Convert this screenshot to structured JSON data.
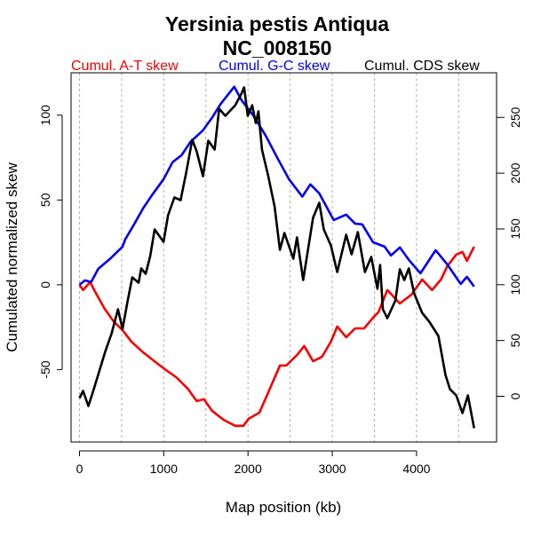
{
  "chart_data": {
    "type": "line",
    "title": "Yersinia pestis Antiqua",
    "subtitle": "NC_008150",
    "xlabel": "Map position (kb)",
    "ylabel": "Cumulated normalized skew",
    "xlim": [
      -100,
      4950
    ],
    "ylim": [
      -92.7,
      125
    ],
    "ylim_right": [
      -41,
      290
    ],
    "x_ticks": [
      "0",
      "1000",
      "2000",
      "3000",
      "4000"
    ],
    "y_ticks": [
      "-50",
      "0",
      "50",
      "100"
    ],
    "y_right_ticks": [
      "0",
      "50",
      "100",
      "150",
      "200",
      "250"
    ],
    "grid": "vertical dashed every 500 kb",
    "legend_placement": "top",
    "series": [
      {
        "name": "Cumul. A-T skew",
        "color": "#ff0000",
        "axis": "left",
        "points": [
          [
            0,
            0
          ],
          [
            42,
            -3.1
          ],
          [
            127,
            1.6
          ],
          [
            191,
            -4.7
          ],
          [
            297,
            -14.1
          ],
          [
            403,
            -21.5
          ],
          [
            510,
            -26.7
          ],
          [
            616,
            -33.5
          ],
          [
            754,
            -39.8
          ],
          [
            860,
            -44
          ],
          [
            998,
            -49.2
          ],
          [
            1147,
            -54.5
          ],
          [
            1285,
            -61.3
          ],
          [
            1391,
            -68.6
          ],
          [
            1476,
            -67.5
          ],
          [
            1572,
            -74.3
          ],
          [
            1710,
            -79.6
          ],
          [
            1848,
            -83.2
          ],
          [
            1943,
            -83.2
          ],
          [
            2007,
            -79
          ],
          [
            2135,
            -75.4
          ],
          [
            2241,
            -63.4
          ],
          [
            2379,
            -47.6
          ],
          [
            2453,
            -47.6
          ],
          [
            2581,
            -41.4
          ],
          [
            2666,
            -36.1
          ],
          [
            2772,
            -45
          ],
          [
            2878,
            -42.4
          ],
          [
            2984,
            -33.5
          ],
          [
            3059,
            -24.6
          ],
          [
            3165,
            -30.9
          ],
          [
            3271,
            -25.7
          ],
          [
            3377,
            -25.7
          ],
          [
            3483,
            -19.4
          ],
          [
            3547,
            -16.2
          ],
          [
            3653,
            -3.1
          ],
          [
            3802,
            -11
          ],
          [
            3940,
            -5.8
          ],
          [
            4067,
            3.1
          ],
          [
            4184,
            -3.1
          ],
          [
            4290,
            3.1
          ],
          [
            4365,
            11
          ],
          [
            4471,
            17.8
          ],
          [
            4545,
            19.4
          ],
          [
            4598,
            14.1
          ],
          [
            4683,
            22.5
          ]
        ]
      },
      {
        "name": "Cumul. G-C skew",
        "color": "#0000ff",
        "axis": "left",
        "points": [
          [
            0,
            0
          ],
          [
            64,
            2.6
          ],
          [
            138,
            1.6
          ],
          [
            223,
            9.4
          ],
          [
            361,
            15.2
          ],
          [
            510,
            22.5
          ],
          [
            542,
            26.7
          ],
          [
            648,
            35.6
          ],
          [
            754,
            45
          ],
          [
            860,
            52.9
          ],
          [
            999,
            62.3
          ],
          [
            1105,
            72.3
          ],
          [
            1211,
            76.4
          ],
          [
            1317,
            84.3
          ],
          [
            1466,
            91.1
          ],
          [
            1572,
            98.4
          ],
          [
            1678,
            106.8
          ],
          [
            1837,
            116.8
          ],
          [
            1922,
            108.9
          ],
          [
            2060,
            100
          ],
          [
            2209,
            88
          ],
          [
            2347,
            74.9
          ],
          [
            2485,
            62.3
          ],
          [
            2644,
            52
          ],
          [
            2740,
            59.2
          ],
          [
            2846,
            53.9
          ],
          [
            3016,
            38.2
          ],
          [
            3165,
            41.4
          ],
          [
            3271,
            36.1
          ],
          [
            3356,
            35.6
          ],
          [
            3483,
            25.1
          ],
          [
            3621,
            22.5
          ],
          [
            3696,
            17.3
          ],
          [
            3802,
            22
          ],
          [
            3908,
            14.7
          ],
          [
            4046,
            6.8
          ],
          [
            4227,
            20.4
          ],
          [
            4365,
            12
          ],
          [
            4524,
            0.5
          ],
          [
            4598,
            4.7
          ],
          [
            4683,
            -1
          ]
        ]
      },
      {
        "name": "Cumul. CDS skew",
        "color": "#000000",
        "axis": "right",
        "points": [
          [
            0,
            -1.6
          ],
          [
            42,
            4.8
          ],
          [
            106,
            -8.8
          ],
          [
            170,
            6.4
          ],
          [
            244,
            24.7
          ],
          [
            308,
            40.6
          ],
          [
            382,
            56.5
          ],
          [
            457,
            78
          ],
          [
            510,
            60.4
          ],
          [
            573,
            85.9
          ],
          [
            626,
            106.6
          ],
          [
            701,
            101.8
          ],
          [
            733,
            114.6
          ],
          [
            786,
            109.8
          ],
          [
            839,
            125.7
          ],
          [
            892,
            149.6
          ],
          [
            998,
            138.4
          ],
          [
            1051,
            162.3
          ],
          [
            1126,
            178.2
          ],
          [
            1200,
            175.8
          ],
          [
            1264,
            199.7
          ],
          [
            1338,
            230
          ],
          [
            1391,
            219.6
          ],
          [
            1466,
            197.3
          ],
          [
            1529,
            229.1
          ],
          [
            1604,
            221.2
          ],
          [
            1657,
            257.8
          ],
          [
            1731,
            251.4
          ],
          [
            1848,
            260.9
          ],
          [
            1922,
            271.3
          ],
          [
            1954,
            276.9
          ],
          [
            1997,
            251.4
          ],
          [
            2050,
            260.9
          ],
          [
            2092,
            245
          ],
          [
            2124,
            255.4
          ],
          [
            2166,
            221.2
          ],
          [
            2241,
            197.3
          ],
          [
            2315,
            170.2
          ],
          [
            2379,
            131.3
          ],
          [
            2432,
            146.4
          ],
          [
            2538,
            123.3
          ],
          [
            2581,
            142.4
          ],
          [
            2655,
            104.2
          ],
          [
            2772,
            160
          ],
          [
            2846,
            173.4
          ],
          [
            2899,
            149.6
          ],
          [
            2984,
            135.2
          ],
          [
            3059,
            111.4
          ],
          [
            3165,
            144.8
          ],
          [
            3229,
            127.3
          ],
          [
            3303,
            147.2
          ],
          [
            3388,
            111.4
          ],
          [
            3462,
            124.9
          ],
          [
            3536,
            96.3
          ],
          [
            3568,
            117.7
          ],
          [
            3600,
            78
          ],
          [
            3653,
            70
          ],
          [
            3749,
            85.9
          ],
          [
            3802,
            113.8
          ],
          [
            3855,
            104.2
          ],
          [
            3908,
            114.6
          ],
          [
            3972,
            92.3
          ],
          [
            4067,
            74.8
          ],
          [
            4152,
            66.8
          ],
          [
            4259,
            54.1
          ],
          [
            4344,
            19.1
          ],
          [
            4397,
            6.4
          ],
          [
            4471,
            0.8
          ],
          [
            4545,
            -15.1
          ],
          [
            4609,
            0.8
          ],
          [
            4683,
            -28.6
          ]
        ]
      }
    ]
  }
}
